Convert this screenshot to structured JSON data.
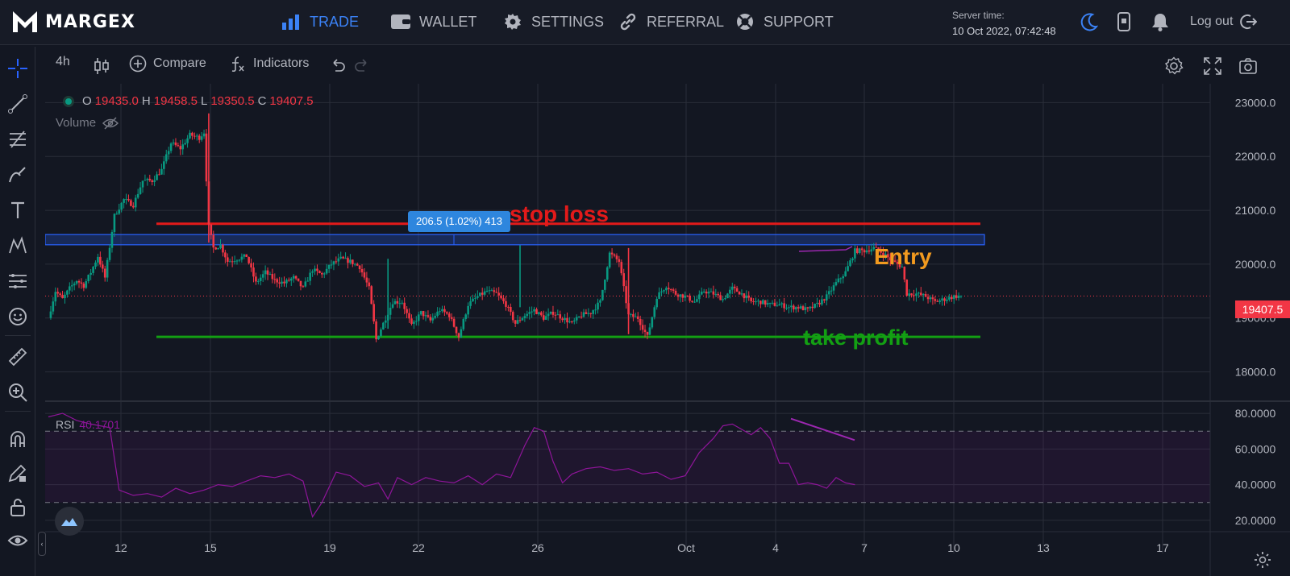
{
  "brand": {
    "name": "MARGEX"
  },
  "nav": {
    "items": [
      {
        "label": "TRADE",
        "icon": "bar-chart-icon",
        "active": true
      },
      {
        "label": "WALLET",
        "icon": "wallet-icon"
      },
      {
        "label": "SETTINGS",
        "icon": "gear-icon"
      },
      {
        "label": "REFERRAL",
        "icon": "link-icon"
      },
      {
        "label": "SUPPORT",
        "icon": "lifebuoy-icon"
      }
    ],
    "server_label": "Server time:",
    "server_time": "10 Oct 2022, 07:42:48",
    "logout_label": "Log out"
  },
  "toolbar": {
    "interval": "4h",
    "compare_label": "Compare",
    "indicators_label": "Indicators"
  },
  "legend": {
    "open_label": "O",
    "open": "19435.0",
    "high_label": "H",
    "high": "19458.5",
    "low_label": "L",
    "low": "19350.5",
    "close_label": "C",
    "close": "19407.5",
    "volume_label": "Volume",
    "rsi_label": "RSI",
    "rsi_value": "40.1701"
  },
  "annotations": {
    "stop_loss": "stop loss",
    "entry": "Entry",
    "take_profit": "take profit",
    "measure": "206.5 (1.02%) 413"
  },
  "last_price": "19407.5",
  "colors": {
    "up": "#089981",
    "down": "#f23645",
    "stop_loss": "#e31a1a",
    "take_profit": "#13a013",
    "entry": "#f29a1f",
    "rsi": "#8e1599",
    "accent": "#3b82f6"
  },
  "chart_data": {
    "type": "candlestick",
    "price_axis": {
      "ticks": [
        "23000.0",
        "22000.0",
        "21000.0",
        "20000.0",
        "19000.0",
        "18000.0"
      ],
      "ylim": [
        17500,
        23350
      ]
    },
    "rsi_axis": {
      "ticks": [
        "80.0000",
        "60.0000",
        "40.0000",
        "20.0000"
      ],
      "ylim": [
        15,
        85
      ],
      "bands": [
        30,
        70
      ]
    },
    "x_ticks": [
      "12",
      "15",
      "19",
      "22",
      "26",
      "Oct",
      "4",
      "7",
      "10",
      "13",
      "17"
    ],
    "levels": {
      "stop_loss": 20750,
      "take_profit": 18650,
      "entry_zone": [
        20360,
        20550
      ]
    },
    "close_path": [
      [
        0,
        19000
      ],
      [
        3,
        19500
      ],
      [
        6,
        19350
      ],
      [
        9,
        19550
      ],
      [
        12,
        19700
      ],
      [
        15,
        19600
      ],
      [
        18,
        19850
      ],
      [
        21,
        20150
      ],
      [
        24,
        19750
      ],
      [
        28,
        20900
      ],
      [
        32,
        21200
      ],
      [
        36,
        21100
      ],
      [
        40,
        21550
      ],
      [
        44,
        21550
      ],
      [
        48,
        21750
      ],
      [
        52,
        22250
      ],
      [
        56,
        22150
      ],
      [
        60,
        22400
      ],
      [
        64,
        22350
      ],
      [
        66,
        22450
      ],
      [
        68,
        20700
      ],
      [
        70,
        20300
      ],
      [
        73,
        20350
      ],
      [
        76,
        20050
      ],
      [
        80,
        20100
      ],
      [
        84,
        20150
      ],
      [
        88,
        19650
      ],
      [
        92,
        19850
      ],
      [
        96,
        19700
      ],
      [
        100,
        19650
      ],
      [
        104,
        19750
      ],
      [
        108,
        19550
      ],
      [
        112,
        19900
      ],
      [
        116,
        19800
      ],
      [
        120,
        20000
      ],
      [
        124,
        20100
      ],
      [
        128,
        20050
      ],
      [
        132,
        19950
      ],
      [
        136,
        19550
      ],
      [
        139,
        18600
      ],
      [
        142,
        18900
      ],
      [
        146,
        19300
      ],
      [
        150,
        19300
      ],
      [
        154,
        18850
      ],
      [
        158,
        19100
      ],
      [
        162,
        18950
      ],
      [
        166,
        19150
      ],
      [
        170,
        19050
      ],
      [
        174,
        18650
      ],
      [
        178,
        19250
      ],
      [
        182,
        19400
      ],
      [
        186,
        19500
      ],
      [
        190,
        19450
      ],
      [
        194,
        19250
      ],
      [
        198,
        18900
      ],
      [
        202,
        19050
      ],
      [
        206,
        19150
      ],
      [
        210,
        19000
      ],
      [
        214,
        19100
      ],
      [
        218,
        19000
      ],
      [
        222,
        18900
      ],
      [
        226,
        19050
      ],
      [
        230,
        19100
      ],
      [
        234,
        19300
      ],
      [
        238,
        20200
      ],
      [
        242,
        20050
      ],
      [
        246,
        19050
      ],
      [
        250,
        19000
      ],
      [
        254,
        18650
      ],
      [
        258,
        19400
      ],
      [
        262,
        19600
      ],
      [
        266,
        19450
      ],
      [
        270,
        19400
      ],
      [
        274,
        19300
      ],
      [
        278,
        19500
      ],
      [
        282,
        19450
      ],
      [
        286,
        19350
      ],
      [
        290,
        19550
      ],
      [
        294,
        19450
      ],
      [
        298,
        19300
      ],
      [
        302,
        19300
      ],
      [
        306,
        19250
      ],
      [
        310,
        19250
      ],
      [
        314,
        19200
      ],
      [
        318,
        19200
      ],
      [
        322,
        19150
      ],
      [
        326,
        19250
      ],
      [
        330,
        19400
      ],
      [
        334,
        19650
      ],
      [
        338,
        19850
      ],
      [
        342,
        20250
      ],
      [
        346,
        20250
      ],
      [
        350,
        20300
      ],
      [
        354,
        20200
      ],
      [
        358,
        20050
      ],
      [
        360,
        20000
      ],
      [
        362,
        19950
      ],
      [
        364,
        19450
      ],
      [
        368,
        19450
      ],
      [
        372,
        19400
      ],
      [
        376,
        19300
      ],
      [
        380,
        19350
      ],
      [
        384,
        19400
      ],
      [
        387,
        19410
      ]
    ],
    "rsi_path": [
      [
        0,
        78
      ],
      [
        6,
        80
      ],
      [
        12,
        76
      ],
      [
        18,
        74
      ],
      [
        22,
        73
      ],
      [
        26,
        72
      ],
      [
        30,
        37
      ],
      [
        36,
        34
      ],
      [
        42,
        35
      ],
      [
        48,
        33
      ],
      [
        54,
        38
      ],
      [
        60,
        35
      ],
      [
        66,
        37
      ],
      [
        72,
        40
      ],
      [
        78,
        39
      ],
      [
        84,
        42
      ],
      [
        90,
        45
      ],
      [
        96,
        44
      ],
      [
        102,
        46
      ],
      [
        108,
        42
      ],
      [
        112,
        22
      ],
      [
        116,
        30
      ],
      [
        122,
        47
      ],
      [
        128,
        45
      ],
      [
        134,
        39
      ],
      [
        140,
        41
      ],
      [
        144,
        32
      ],
      [
        148,
        44
      ],
      [
        154,
        40
      ],
      [
        160,
        44
      ],
      [
        166,
        42
      ],
      [
        172,
        41
      ],
      [
        178,
        45
      ],
      [
        184,
        40
      ],
      [
        190,
        46
      ],
      [
        196,
        44
      ],
      [
        202,
        62
      ],
      [
        206,
        72
      ],
      [
        210,
        70
      ],
      [
        214,
        53
      ],
      [
        218,
        41
      ],
      [
        222,
        46
      ],
      [
        228,
        49
      ],
      [
        234,
        50
      ],
      [
        240,
        48
      ],
      [
        246,
        49
      ],
      [
        252,
        46
      ],
      [
        258,
        47
      ],
      [
        264,
        43
      ],
      [
        270,
        45
      ],
      [
        276,
        58
      ],
      [
        282,
        66
      ],
      [
        286,
        73
      ],
      [
        290,
        74
      ],
      [
        294,
        71
      ],
      [
        298,
        68
      ],
      [
        302,
        72
      ],
      [
        306,
        66
      ],
      [
        310,
        52
      ],
      [
        314,
        52
      ],
      [
        318,
        40
      ],
      [
        322,
        41
      ],
      [
        326,
        40
      ],
      [
        330,
        38
      ],
      [
        334,
        44
      ],
      [
        338,
        41
      ],
      [
        342,
        40
      ]
    ]
  }
}
